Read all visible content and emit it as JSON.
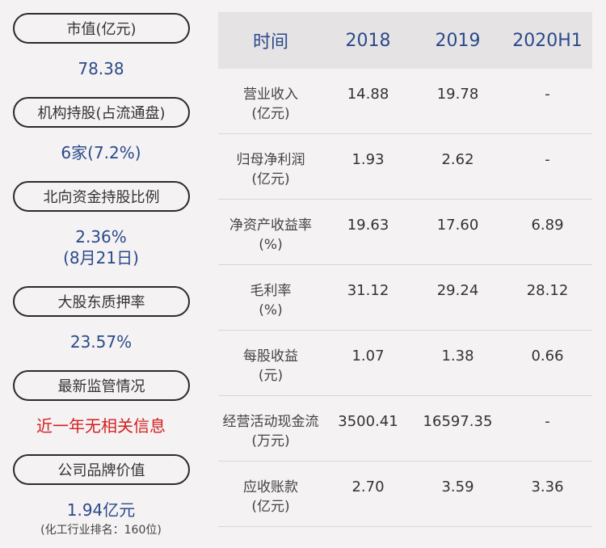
{
  "left_panel": [
    {
      "label": "市值(亿元)",
      "value": "78.38"
    },
    {
      "label": "机构持股(占流通盘)",
      "value": "6家(7.2%)"
    },
    {
      "label": "北向资金持股比例",
      "value_line1": "2.36%",
      "value_line2": "(8月21日)"
    },
    {
      "label": "大股东质押率",
      "value": "23.57%"
    },
    {
      "label": "最新监管情况",
      "value": "近一年无相关信息",
      "value_color": "#d42020"
    },
    {
      "label": "公司品牌价值",
      "value": "1.94亿元",
      "note": "(化工行业排名：160位)"
    }
  ],
  "table": {
    "headers": [
      "时间",
      "2018",
      "2019",
      "2020H1"
    ],
    "rows": [
      {
        "metric": "营业收入",
        "unit": "(亿元)",
        "values": [
          "14.88",
          "19.78",
          "-"
        ]
      },
      {
        "metric": "归母净利润",
        "unit": "(亿元)",
        "values": [
          "1.93",
          "2.62",
          "-"
        ]
      },
      {
        "metric": "净资产收益率",
        "unit": "(%)",
        "values": [
          "19.63",
          "17.60",
          "6.89"
        ]
      },
      {
        "metric": "毛利率",
        "unit": "(%)",
        "values": [
          "31.12",
          "29.24",
          "28.12"
        ]
      },
      {
        "metric": "每股收益",
        "unit": "(元)",
        "values": [
          "1.07",
          "1.38",
          "0.66"
        ]
      },
      {
        "metric": "经营活动现金流",
        "unit": "(万元)",
        "values": [
          "3500.41",
          "16597.35",
          "-"
        ]
      },
      {
        "metric": "应收账款",
        "unit": "(亿元)",
        "values": [
          "2.70",
          "3.59",
          "3.36"
        ]
      }
    ]
  },
  "colors": {
    "accent_blue": "#2b4a8b",
    "alert_red": "#d42020",
    "background": "#f4f2f3"
  }
}
